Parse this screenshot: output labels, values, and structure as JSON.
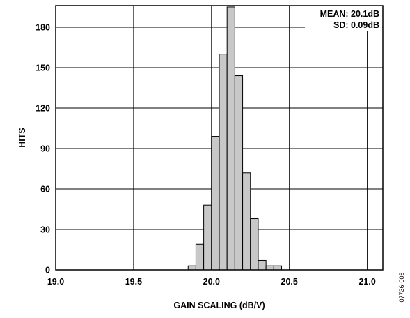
{
  "chart_data": {
    "type": "bar",
    "title": "",
    "xlabel": "GAIN SCALING (dB/V)",
    "ylabel": "HITS",
    "xlim": [
      19.0,
      21.1
    ],
    "ylim": [
      0,
      196
    ],
    "x_ticks": [
      19.0,
      19.5,
      20.0,
      20.5,
      21.0
    ],
    "x_tick_labels": [
      "19.0",
      "19.5",
      "20.0",
      "20.5",
      "21.0"
    ],
    "y_ticks": [
      0,
      30,
      60,
      90,
      120,
      150,
      180
    ],
    "y_tick_labels": [
      "0",
      "30",
      "60",
      "90",
      "120",
      "150",
      "180"
    ],
    "grid": true,
    "bin_width": 0.05,
    "bar_fill": "#c8c8c8",
    "bins": [
      {
        "x": 19.875,
        "value": 3
      },
      {
        "x": 19.925,
        "value": 19
      },
      {
        "x": 19.975,
        "value": 48
      },
      {
        "x": 20.025,
        "value": 99
      },
      {
        "x": 20.075,
        "value": 160
      },
      {
        "x": 20.125,
        "value": 195
      },
      {
        "x": 20.175,
        "value": 144
      },
      {
        "x": 20.225,
        "value": 72
      },
      {
        "x": 20.275,
        "value": 38
      },
      {
        "x": 20.325,
        "value": 7
      },
      {
        "x": 20.375,
        "value": 3
      },
      {
        "x": 20.425,
        "value": 3
      }
    ],
    "annotations": [
      "MEAN: 20.1dB",
      "SD: 0.09dB"
    ],
    "legend_position": "top-right"
  },
  "figure_code": "07736-008"
}
